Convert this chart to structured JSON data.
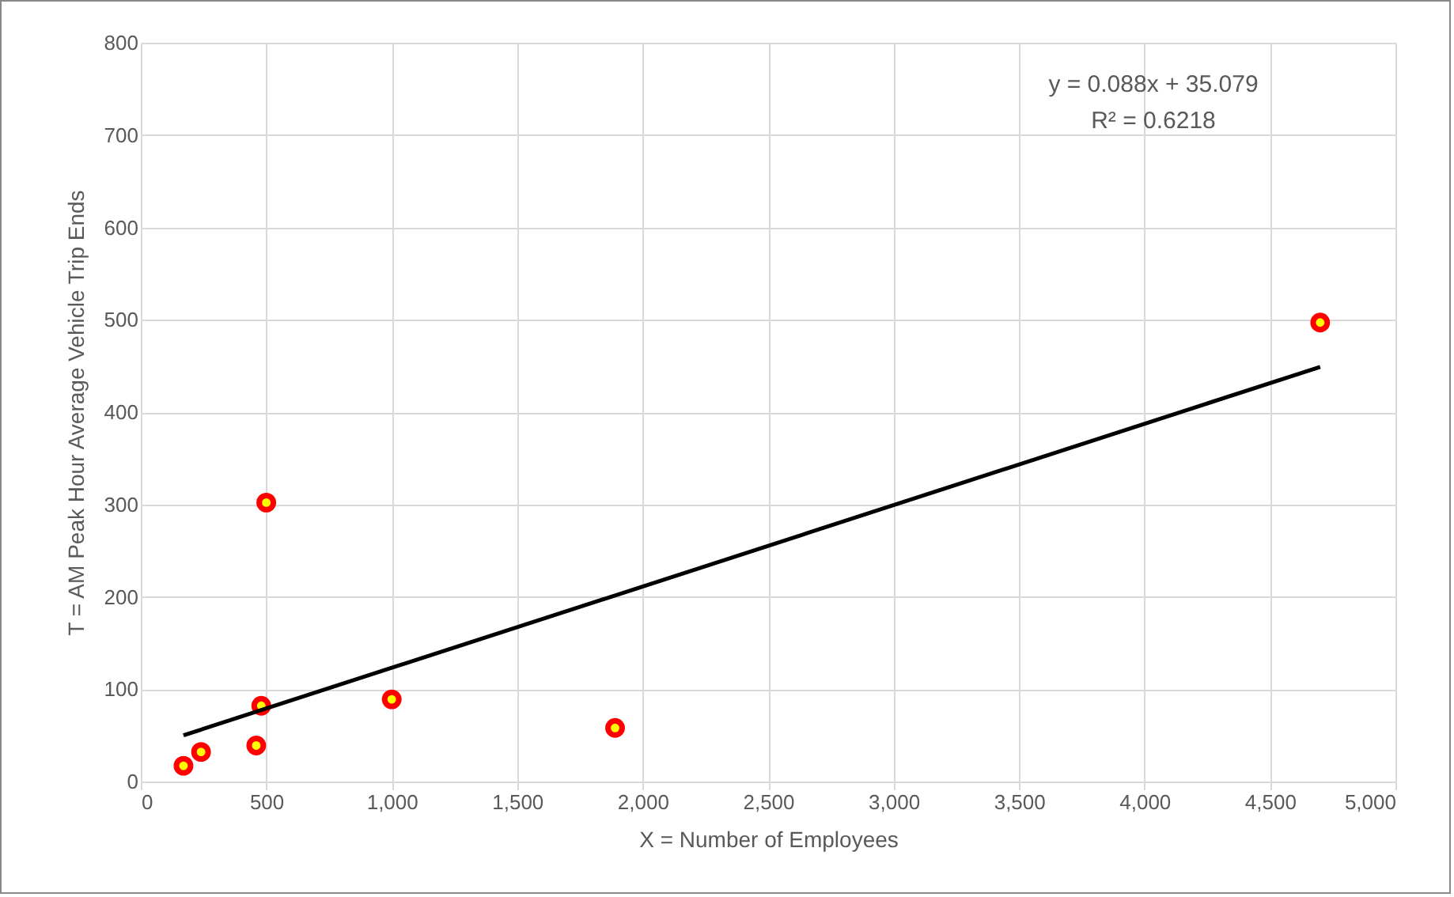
{
  "chart_data": {
    "type": "scatter",
    "xlabel": "X = Number of Employees",
    "ylabel": "T = AM Peak Hour Average Vehicle Trip Ends",
    "series": [
      {
        "color": "#ff0000",
        "marker": "circle",
        "x": [
          170,
          240,
          460,
          480,
          500,
          1000,
          1890,
          4700
        ],
        "values": [
          17,
          32,
          39,
          82,
          302,
          89,
          58,
          497
        ]
      },
      {
        "type": "line",
        "color": "#000000",
        "x": [
          170,
          4700
        ],
        "values": [
          50,
          449
        ]
      }
    ],
    "annotations": [
      "y = 0.088x + 35.079",
      "R² = 0.6218"
    ],
    "xlim": [
      0,
      5000
    ],
    "xticks": [
      0,
      500,
      {
        "value": 1000,
        "label": "1,000"
      },
      {
        "value": 1500,
        "label": "1,500"
      },
      {
        "value": 2000,
        "label": "2,000"
      },
      {
        "value": 2500,
        "label": "2,500"
      },
      {
        "value": 3000,
        "label": "3,000"
      },
      {
        "value": 3500,
        "label": "3,500"
      },
      {
        "value": 4000,
        "label": "4,000"
      },
      {
        "value": 4500,
        "label": "4,500"
      },
      {
        "value": 5000,
        "label": "5,000"
      }
    ],
    "ylim": [
      0,
      800
    ],
    "yticks": [
      0,
      100,
      200,
      300,
      400,
      500,
      600,
      700,
      800
    ],
    "grid": true
  }
}
